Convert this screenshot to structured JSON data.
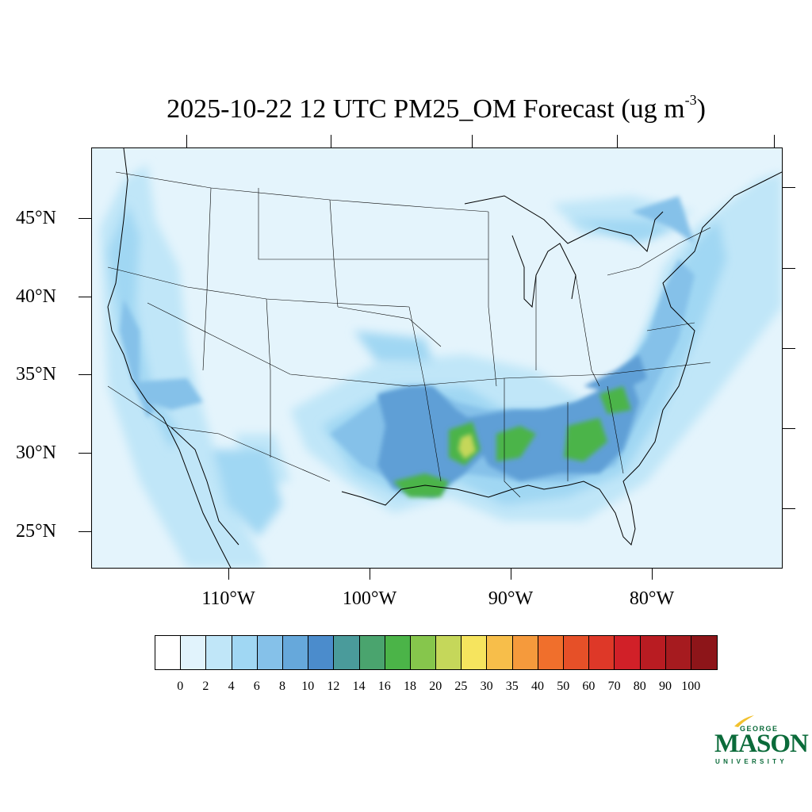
{
  "title": {
    "text": "2025-10-22 12 UTC PM25_OM Forecast (ug m",
    "superscript": "-3",
    "close": ")"
  },
  "map": {
    "latitude_labels": [
      "45°N",
      "40°N",
      "35°N",
      "30°N",
      "25°N"
    ],
    "longitude_labels": [
      "110°W",
      "100°W",
      "90°W",
      "80°W"
    ],
    "colors": {
      "background": "#e4f4fc",
      "borders": "#000000",
      "coast": "#000000"
    }
  },
  "colorbar": {
    "colors": [
      "#ffffff",
      "#e1f3fc",
      "#c0e6f8",
      "#a0d7f3",
      "#85c1e9",
      "#66a8db",
      "#4b8ccc",
      "#4a9b9b",
      "#4aa46e",
      "#4bb448",
      "#86c64c",
      "#c5d75a",
      "#f6e45e",
      "#f7be4a",
      "#f59a3c",
      "#f06f2c",
      "#e65028",
      "#de3828",
      "#d12028",
      "#b91c22",
      "#a61b1f",
      "#8d1519"
    ],
    "labels": [
      "0",
      "2",
      "4",
      "6",
      "8",
      "10",
      "12",
      "14",
      "16",
      "18",
      "20",
      "25",
      "30",
      "35",
      "40",
      "50",
      "60",
      "70",
      "80",
      "90",
      "100"
    ]
  },
  "logo": {
    "line1": "GEORGE",
    "line2": "MASON",
    "line3": "UNIVERSITY",
    "color": "#0b6b3a",
    "accent": "#f2c12e"
  }
}
